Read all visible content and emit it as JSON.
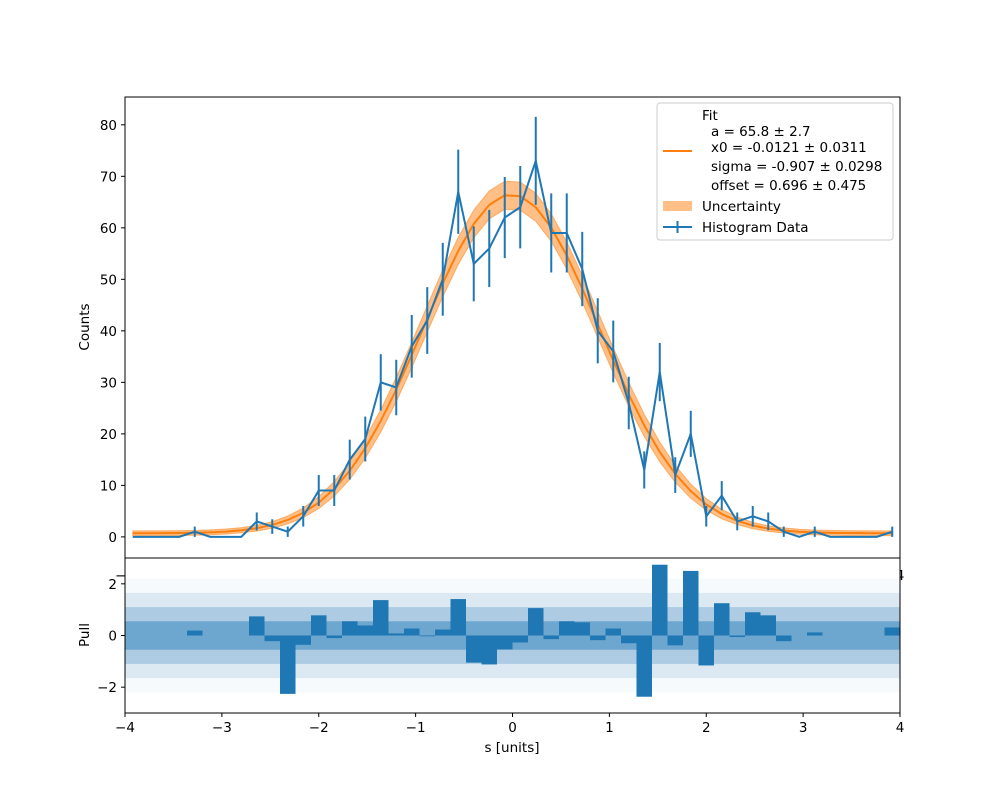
{
  "chart_data": [
    {
      "type": "line",
      "panel": "main",
      "title": "",
      "xlabel": "",
      "ylabel": "Counts",
      "xlim": [
        -4,
        4
      ],
      "ylim": [
        -4.1,
        85.4
      ],
      "yticks": [
        0,
        10,
        20,
        30,
        40,
        50,
        60,
        70,
        80
      ],
      "xticks_visible": [
        "−4",
        "4"
      ],
      "grid": false,
      "legend_position": "top-right",
      "colors": {
        "data": "#1f77b4",
        "fit": "#ff7f0e",
        "band": "#ffbb78"
      },
      "x": [
        -3.92,
        -3.76,
        -3.6,
        -3.44,
        -3.28,
        -3.12,
        -2.96,
        -2.8,
        -2.64,
        -2.48,
        -2.32,
        -2.16,
        -2.0,
        -1.84,
        -1.68,
        -1.52,
        -1.36,
        -1.2,
        -1.04,
        -0.88,
        -0.72,
        -0.56,
        -0.4,
        -0.24,
        -0.08,
        0.08,
        0.24,
        0.4,
        0.56,
        0.72,
        0.88,
        1.04,
        1.2,
        1.36,
        1.52,
        1.68,
        1.84,
        2.0,
        2.16,
        2.32,
        2.48,
        2.64,
        2.8,
        2.96,
        3.12,
        3.28,
        3.44,
        3.6,
        3.76,
        3.92
      ],
      "series": [
        {
          "name": "Histogram Data",
          "kind": "errorbar",
          "values": [
            0,
            0,
            0,
            0,
            1,
            0,
            0,
            0,
            3,
            2,
            1,
            4,
            9,
            9,
            15,
            19,
            30,
            29,
            37,
            42,
            50,
            67,
            53,
            56,
            62,
            64,
            73,
            59,
            59,
            52,
            40,
            36,
            26,
            13,
            32,
            12,
            20,
            4,
            8,
            3,
            4,
            3,
            1,
            0,
            1,
            0,
            0,
            0,
            0,
            1
          ],
          "yerr": "sqrt(N)"
        },
        {
          "name": "Fit",
          "kind": "line",
          "model": "a*exp(-(x-x0)^2/(2*sigma^2))+offset"
        },
        {
          "name": "Uncertainty",
          "kind": "band"
        }
      ],
      "fit_params": {
        "a": 65.8,
        "a_err": 2.7,
        "x0": -0.0121,
        "x0_err": 0.0311,
        "sigma": -0.907,
        "sigma_err": 0.0298,
        "offset": 0.696,
        "offset_err": 0.475
      },
      "legend": {
        "fit_title": "Fit",
        "fit_lines": [
          "a = 65.8 ± 2.7",
          "x0 = -0.0121 ± 0.0311",
          "sigma = -0.907 ± 0.0298",
          "offset = 0.696 ± 0.475"
        ],
        "uncertainty": "Uncertainty",
        "data": "Histogram Data"
      }
    },
    {
      "type": "bar",
      "panel": "pull",
      "xlabel": "s [units]",
      "ylabel": "Pull",
      "xlim": [
        -4,
        4
      ],
      "ylim": [
        -3,
        3
      ],
      "xticks": [
        -4,
        -3,
        -2,
        -1,
        0,
        1,
        2,
        3,
        4
      ],
      "xtick_labels": [
        "−4",
        "−3",
        "−2",
        "−1",
        "0",
        "1",
        "2",
        "3",
        "4"
      ],
      "yticks": [
        -2,
        0,
        2
      ],
      "ytick_labels": [
        "−2",
        "0",
        "2"
      ],
      "bin_width": 0.16,
      "bands": [
        0.55,
        1.1,
        1.65,
        2.2
      ],
      "values": [
        0,
        0,
        0,
        0,
        0.19,
        0,
        0,
        0,
        0.74,
        -0.22,
        -2.26,
        -0.36,
        0.78,
        -0.1,
        0.55,
        0.39,
        1.37,
        0.08,
        0.27,
        -0.03,
        0.23,
        1.41,
        -1.05,
        -1.12,
        -0.54,
        -0.27,
        1.06,
        -0.14,
        0.55,
        0.51,
        -0.18,
        0.27,
        -0.3,
        -2.37,
        2.74,
        -0.38,
        2.5,
        -1.16,
        1.25,
        -0.06,
        0.9,
        0.78,
        -0.22,
        0,
        0.12,
        0,
        0,
        0,
        0,
        0.31
      ]
    }
  ]
}
